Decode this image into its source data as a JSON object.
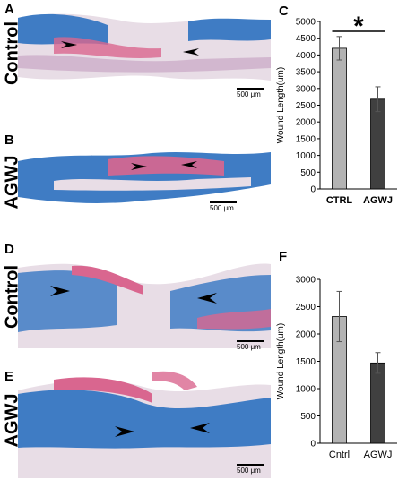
{
  "panels": {
    "A": {
      "letter": "A",
      "row_label": "Control",
      "scale_text": "500 μm"
    },
    "B": {
      "letter": "B",
      "row_label": "AGWJ",
      "scale_text": "500 μm"
    },
    "D": {
      "letter": "D",
      "row_label": "Control",
      "scale_text": "500 μm"
    },
    "E": {
      "letter": "E",
      "row_label": "AGWJ",
      "scale_text": "500 μm"
    },
    "C": {
      "letter": "C"
    },
    "F": {
      "letter": "F"
    }
  },
  "colors": {
    "ctrl_bar": "#b3b3b3",
    "treat_bar": "#404040",
    "stain_blue": "#3f7cc4",
    "stain_pink": "#d9668f",
    "tissue_light": "#e8dde6"
  },
  "chart_data": [
    {
      "type": "bar",
      "panel": "C",
      "categories": [
        "CTRL",
        "AGWJ"
      ],
      "values": [
        4200,
        2680
      ],
      "errors": [
        350,
        370
      ],
      "ylabel": "Wound Length(um)",
      "ylim": [
        0,
        5000
      ],
      "yticks": [
        "0",
        "500",
        "1000",
        "1500",
        "2000",
        "2500",
        "3000",
        "3500",
        "4000",
        "4500",
        "5000"
      ],
      "significance": "*",
      "grid": false
    },
    {
      "type": "bar",
      "panel": "F",
      "categories": [
        "Cntrl",
        "AGWJ"
      ],
      "values": [
        2320,
        1470
      ],
      "errors": [
        460,
        190
      ],
      "ylabel": "Wound Length(um)",
      "ylim": [
        0,
        3000
      ],
      "yticks": [
        "0",
        "500",
        "1000",
        "1500",
        "2000",
        "2500",
        "3000"
      ],
      "grid": false
    }
  ]
}
